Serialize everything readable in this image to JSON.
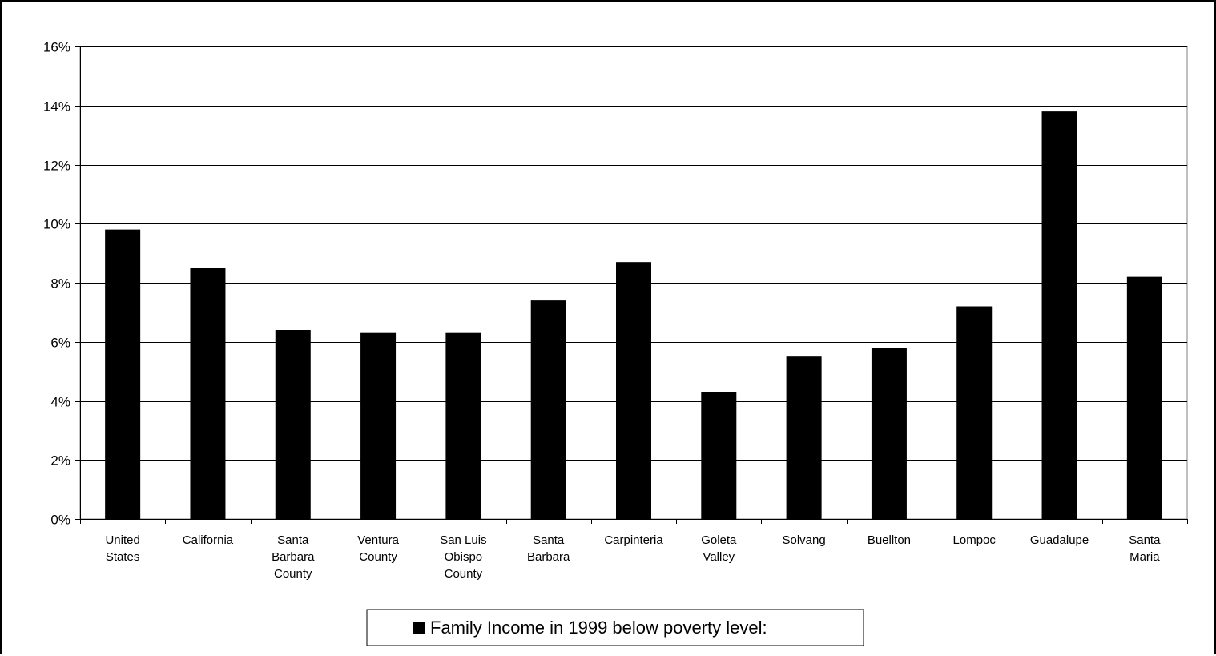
{
  "chart_data": {
    "type": "bar",
    "categories": [
      [
        "United",
        "States"
      ],
      [
        "California"
      ],
      [
        "Santa",
        "Barbara",
        "County"
      ],
      [
        "Ventura",
        "County"
      ],
      [
        "San Luis",
        "Obispo",
        "County"
      ],
      [
        "Santa",
        "Barbara"
      ],
      [
        "Carpinteria"
      ],
      [
        "Goleta",
        "Valley"
      ],
      [
        "Solvang"
      ],
      [
        "Buellton"
      ],
      [
        "Lompoc"
      ],
      [
        "Guadalupe"
      ],
      [
        "Santa",
        "Maria"
      ]
    ],
    "series": [
      {
        "name": "Family Income in 1999 below poverty level:",
        "values": [
          9.8,
          8.5,
          6.4,
          6.3,
          6.3,
          7.4,
          8.7,
          4.3,
          5.5,
          5.8,
          7.2,
          13.8,
          8.2
        ]
      }
    ],
    "yticks": [
      "0%",
      "2%",
      "4%",
      "6%",
      "8%",
      "10%",
      "12%",
      "14%",
      "16%"
    ],
    "ylim": [
      0,
      16
    ],
    "grid": true,
    "legend_position": "bottom",
    "bar_color": "#000000"
  }
}
